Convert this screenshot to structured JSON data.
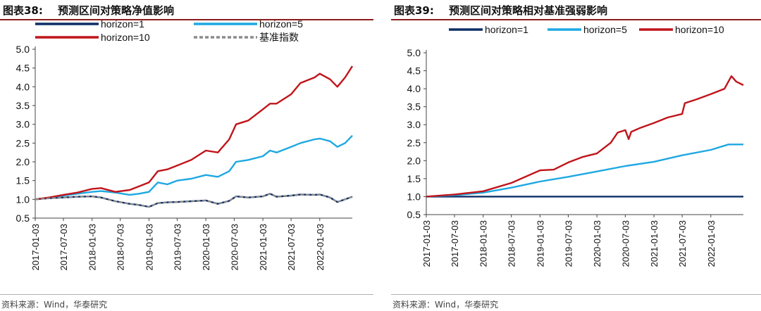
{
  "charts": [
    {
      "figure_no": "图表38:",
      "title": "预测区间对策略净值影响",
      "source": "资料来源：Wind，华泰研究",
      "legend": [
        {
          "label": "horizon=1",
          "color": "#0d2f66",
          "dash": false
        },
        {
          "label": "horizon=5",
          "color": "#1ea8e2",
          "dash": false
        },
        {
          "label": "horizon=10",
          "color": "#c0141a",
          "dash": false
        },
        {
          "label": "基准指数",
          "color": "#8c8c8c",
          "dash": true
        }
      ]
    },
    {
      "figure_no": "图表39:",
      "title": "预测区间对策略相对基准强弱影响",
      "source": "资料来源：Wind，华泰研究",
      "legend": [
        {
          "label": "horizon=1",
          "color": "#0d2f66",
          "dash": false
        },
        {
          "label": "horizon=5",
          "color": "#1ea8e2",
          "dash": false
        },
        {
          "label": "horizon=10",
          "color": "#c0141a",
          "dash": false
        }
      ]
    }
  ],
  "chart_data": [
    {
      "type": "line",
      "title": "预测区间对策略净值影响",
      "xlabel": "",
      "ylabel": "",
      "ylim": [
        0.5,
        5.0
      ],
      "yticks": [
        "0.5",
        "1.0",
        "1.5",
        "2.0",
        "2.5",
        "3.0",
        "3.5",
        "4.0",
        "4.5",
        "5.0"
      ],
      "xticks": [
        "2017-01-03",
        "2017-07-03",
        "2018-01-03",
        "2018-07-03",
        "2019-01-03",
        "2019-07-03",
        "2020-01-03",
        "2020-07-03",
        "2021-01-03",
        "2021-07-03",
        "2022-01-03"
      ],
      "xrange": [
        "2017-01-03",
        "2022-07-31"
      ],
      "legend_position": "top",
      "grid": false,
      "series": [
        {
          "name": "horizon=1",
          "color": "#0d2f66",
          "dash": false,
          "x": [
            "2017-01-03",
            "2017-04-01",
            "2017-07-03",
            "2017-10-01",
            "2018-01-03",
            "2018-03-01",
            "2018-06-01",
            "2018-09-01",
            "2018-11-01",
            "2019-01-03",
            "2019-03-01",
            "2019-05-01",
            "2019-07-03",
            "2019-10-01",
            "2020-01-03",
            "2020-03-20",
            "2020-06-01",
            "2020-07-15",
            "2020-10-01",
            "2021-01-03",
            "2021-02-18",
            "2021-04-01",
            "2021-07-03",
            "2021-09-01",
            "2021-12-01",
            "2022-01-03",
            "2022-03-10",
            "2022-04-26",
            "2022-06-15",
            "2022-07-31"
          ],
          "y": [
            1.0,
            1.03,
            1.05,
            1.07,
            1.08,
            1.05,
            0.95,
            0.88,
            0.85,
            0.8,
            0.9,
            0.92,
            0.93,
            0.95,
            0.97,
            0.88,
            0.96,
            1.08,
            1.05,
            1.08,
            1.15,
            1.07,
            1.1,
            1.13,
            1.12,
            1.13,
            1.05,
            0.93,
            1.0,
            1.07
          ]
        },
        {
          "name": "horizon=5",
          "color": "#1ea8e2",
          "dash": false,
          "x": [
            "2017-01-03",
            "2017-04-01",
            "2017-07-03",
            "2017-10-01",
            "2018-01-03",
            "2018-03-01",
            "2018-06-01",
            "2018-09-01",
            "2018-11-01",
            "2019-01-03",
            "2019-03-01",
            "2019-05-01",
            "2019-07-03",
            "2019-10-01",
            "2020-01-03",
            "2020-03-20",
            "2020-06-01",
            "2020-07-15",
            "2020-10-01",
            "2021-01-03",
            "2021-02-18",
            "2021-04-01",
            "2021-07-03",
            "2021-09-01",
            "2021-12-01",
            "2022-01-03",
            "2022-03-10",
            "2022-04-26",
            "2022-06-15",
            "2022-07-31"
          ],
          "y": [
            1.0,
            1.05,
            1.1,
            1.15,
            1.2,
            1.22,
            1.18,
            1.12,
            1.15,
            1.2,
            1.45,
            1.4,
            1.5,
            1.55,
            1.65,
            1.6,
            1.75,
            2.0,
            2.05,
            2.15,
            2.3,
            2.25,
            2.4,
            2.5,
            2.6,
            2.62,
            2.55,
            2.4,
            2.5,
            2.7
          ]
        },
        {
          "name": "horizon=10",
          "color": "#c0141a",
          "dash": false,
          "x": [
            "2017-01-03",
            "2017-04-01",
            "2017-07-03",
            "2017-10-01",
            "2018-01-03",
            "2018-03-01",
            "2018-06-01",
            "2018-09-01",
            "2018-11-01",
            "2019-01-03",
            "2019-03-01",
            "2019-05-01",
            "2019-07-03",
            "2019-10-01",
            "2020-01-03",
            "2020-03-20",
            "2020-06-01",
            "2020-07-15",
            "2020-10-01",
            "2021-01-03",
            "2021-02-18",
            "2021-04-01",
            "2021-07-03",
            "2021-09-01",
            "2021-12-01",
            "2022-01-03",
            "2022-03-10",
            "2022-04-26",
            "2022-06-15",
            "2022-07-31"
          ],
          "y": [
            1.0,
            1.05,
            1.12,
            1.18,
            1.28,
            1.3,
            1.2,
            1.25,
            1.35,
            1.45,
            1.75,
            1.8,
            1.9,
            2.05,
            2.3,
            2.25,
            2.6,
            3.0,
            3.1,
            3.4,
            3.55,
            3.55,
            3.8,
            4.1,
            4.25,
            4.35,
            4.2,
            4.0,
            4.25,
            4.55
          ]
        },
        {
          "name": "基准指数",
          "color": "#8c8c8c",
          "dash": true,
          "x": [
            "2017-01-03",
            "2017-04-01",
            "2017-07-03",
            "2017-10-01",
            "2018-01-03",
            "2018-03-01",
            "2018-06-01",
            "2018-09-01",
            "2018-11-01",
            "2019-01-03",
            "2019-03-01",
            "2019-05-01",
            "2019-07-03",
            "2019-10-01",
            "2020-01-03",
            "2020-03-20",
            "2020-06-01",
            "2020-07-15",
            "2020-10-01",
            "2021-01-03",
            "2021-02-18",
            "2021-04-01",
            "2021-07-03",
            "2021-09-01",
            "2021-12-01",
            "2022-01-03",
            "2022-03-10",
            "2022-04-26",
            "2022-06-15",
            "2022-07-31"
          ],
          "y": [
            1.0,
            1.03,
            1.05,
            1.07,
            1.08,
            1.05,
            0.95,
            0.88,
            0.85,
            0.8,
            0.9,
            0.92,
            0.93,
            0.95,
            0.97,
            0.88,
            0.96,
            1.08,
            1.05,
            1.08,
            1.15,
            1.07,
            1.1,
            1.13,
            1.12,
            1.13,
            1.05,
            0.93,
            1.0,
            1.07
          ]
        }
      ]
    },
    {
      "type": "line",
      "title": "预测区间对策略相对基准强弱影响",
      "xlabel": "",
      "ylabel": "",
      "ylim": [
        0.5,
        5.0
      ],
      "yticks": [
        "0.5",
        "1.0",
        "1.5",
        "2.0",
        "2.5",
        "3.0",
        "3.5",
        "4.0",
        "4.5",
        "5.0"
      ],
      "xticks": [
        "2017-01-03",
        "2017-07-03",
        "2018-01-03",
        "2018-07-03",
        "2019-01-03",
        "2019-07-03",
        "2020-01-03",
        "2020-07-03",
        "2021-01-03",
        "2021-07-03",
        "2022-01-03"
      ],
      "xrange": [
        "2017-01-03",
        "2022-07-31"
      ],
      "legend_position": "top",
      "grid": false,
      "series": [
        {
          "name": "horizon=1",
          "color": "#0d2f66",
          "dash": false,
          "x": [
            "2017-01-03",
            "2022-07-31"
          ],
          "y": [
            1.0,
            1.0
          ]
        },
        {
          "name": "horizon=5",
          "color": "#1ea8e2",
          "dash": false,
          "x": [
            "2017-01-03",
            "2017-07-03",
            "2018-01-03",
            "2018-07-03",
            "2019-01-03",
            "2019-07-03",
            "2020-01-03",
            "2020-07-03",
            "2021-01-03",
            "2021-07-03",
            "2022-01-03",
            "2022-04-26",
            "2022-07-31"
          ],
          "y": [
            1.0,
            1.04,
            1.11,
            1.25,
            1.42,
            1.55,
            1.7,
            1.85,
            1.97,
            2.15,
            2.3,
            2.45,
            2.45
          ]
        },
        {
          "name": "horizon=10",
          "color": "#c0141a",
          "dash": false,
          "x": [
            "2017-01-03",
            "2017-07-03",
            "2018-01-03",
            "2018-07-03",
            "2019-01-03",
            "2019-04-01",
            "2019-07-03",
            "2019-10-01",
            "2020-01-03",
            "2020-04-01",
            "2020-05-15",
            "2020-07-03",
            "2020-07-25",
            "2020-08-10",
            "2020-10-01",
            "2021-01-03",
            "2021-04-01",
            "2021-07-03",
            "2021-07-20",
            "2021-10-01",
            "2022-01-03",
            "2022-04-01",
            "2022-05-15",
            "2022-06-15",
            "2022-07-31"
          ],
          "y": [
            1.0,
            1.06,
            1.15,
            1.38,
            1.73,
            1.75,
            1.95,
            2.1,
            2.2,
            2.5,
            2.78,
            2.85,
            2.6,
            2.8,
            2.9,
            3.05,
            3.2,
            3.3,
            3.6,
            3.7,
            3.85,
            4.0,
            4.35,
            4.2,
            4.1
          ]
        }
      ]
    }
  ]
}
